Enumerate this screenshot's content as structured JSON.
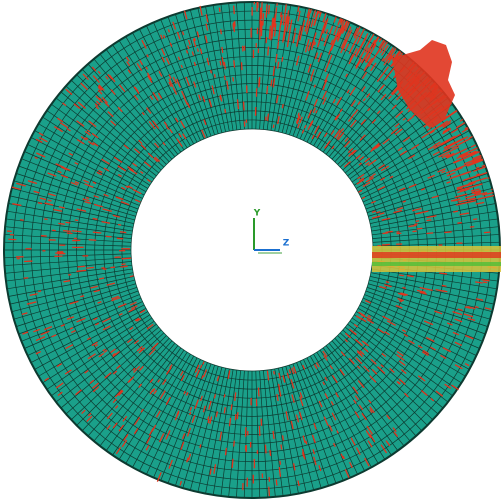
{
  "triad": {
    "y_label": "Y",
    "z_label": "Z"
  }
}
